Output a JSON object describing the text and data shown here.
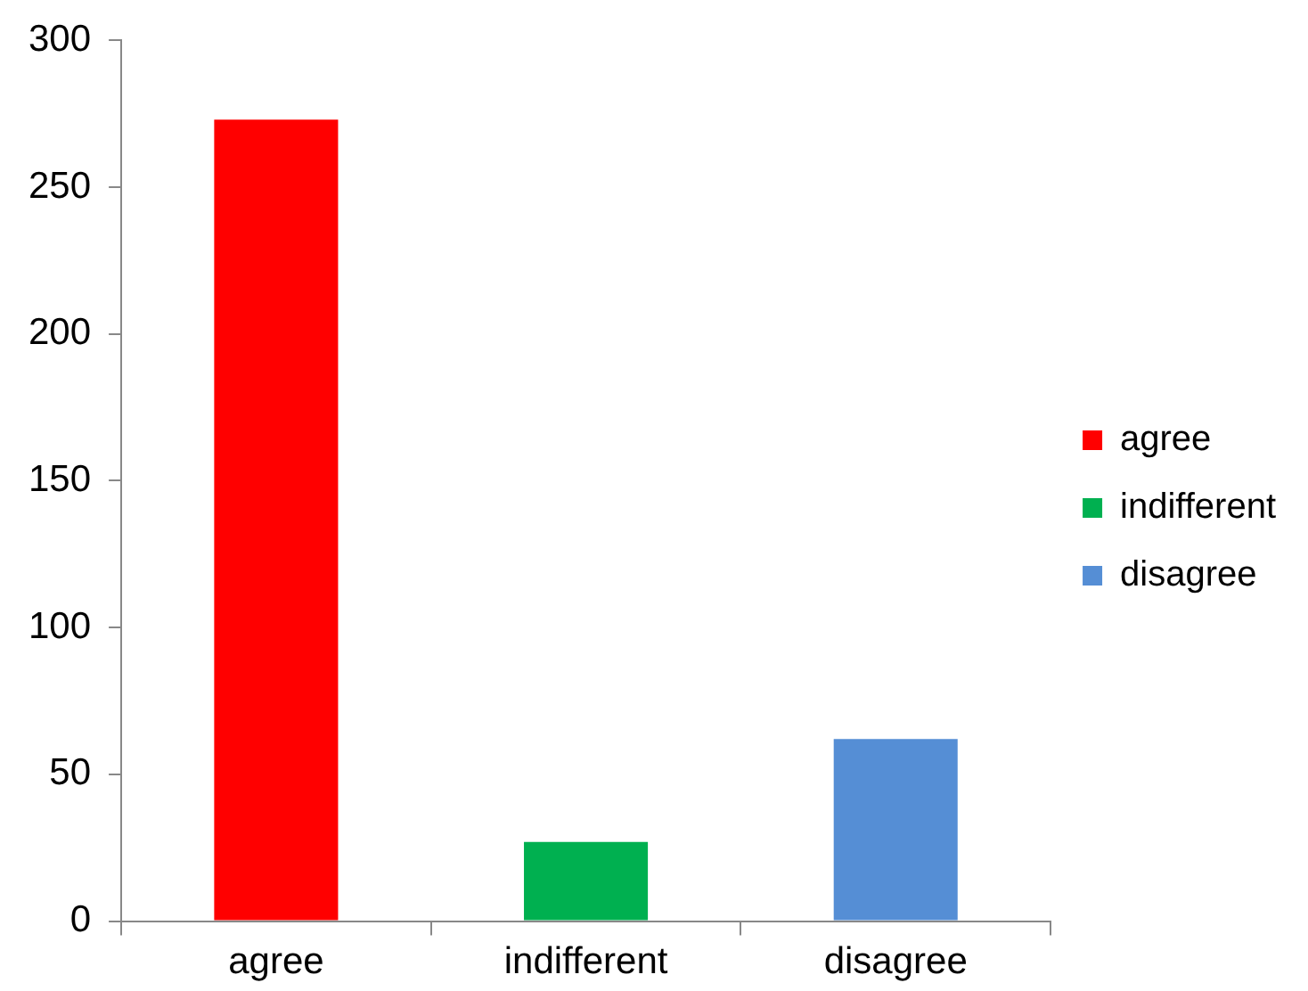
{
  "chart_data": {
    "type": "bar",
    "categories": [
      "agree",
      "indifferent",
      "disagree"
    ],
    "series": [
      {
        "name": "agree",
        "color": "#ff0000",
        "values": [
          273,
          null,
          null
        ]
      },
      {
        "name": "indifferent",
        "color": "#00b050",
        "values": [
          null,
          27,
          null
        ]
      },
      {
        "name": "disagree",
        "color": "#558ed5",
        "values": [
          null,
          null,
          62
        ]
      }
    ],
    "ylim": [
      0,
      300
    ],
    "yticks": [
      0,
      50,
      100,
      150,
      200,
      250,
      300
    ],
    "grid": false,
    "legend": "right"
  }
}
